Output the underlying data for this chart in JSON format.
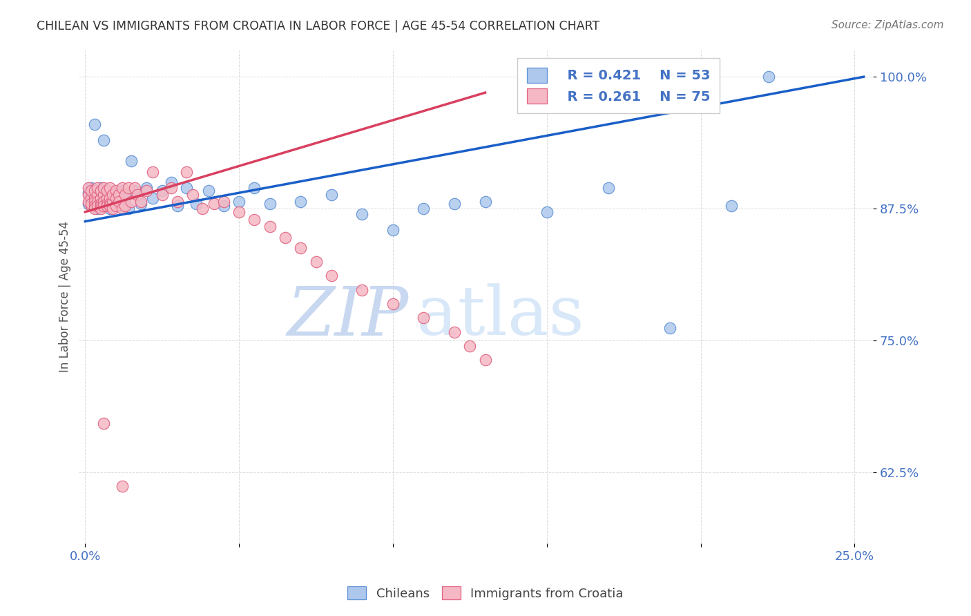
{
  "title": "CHILEAN VS IMMIGRANTS FROM CROATIA IN LABOR FORCE | AGE 45-54 CORRELATION CHART",
  "source_text": "Source: ZipAtlas.com",
  "ylabel": "In Labor Force | Age 45-54",
  "xlim_min": -0.002,
  "xlim_max": 0.256,
  "ylim_min": 0.558,
  "ylim_max": 1.025,
  "x_ticks": [
    0.0,
    0.05,
    0.1,
    0.15,
    0.2,
    0.25
  ],
  "x_tick_labels": [
    "0.0%",
    "",
    "",
    "",
    "",
    "25.0%"
  ],
  "y_ticks": [
    0.625,
    0.75,
    0.875,
    1.0
  ],
  "y_tick_labels": [
    "62.5%",
    "75.0%",
    "87.5%",
    "100.0%"
  ],
  "legend_blue_r": "R = 0.421",
  "legend_blue_n": "N = 53",
  "legend_pink_r": "R = 0.261",
  "legend_pink_n": "N = 75",
  "blue_fill": "#adc8ec",
  "blue_edge": "#5b8fd4",
  "pink_fill": "#f5b8c4",
  "pink_edge": "#e06080",
  "blue_line": "#1a5fc8",
  "pink_line": "#d94060",
  "title_color": "#333333",
  "axis_label_color": "#4472c4",
  "watermark_zip": "#c8d8f0",
  "watermark_atlas": "#d8e8f8",
  "grid_color": "#d8d8d8",
  "chileans_label": "Chileans",
  "croatia_label": "Immigrants from Croatia",
  "blue_x": [
    0.001,
    0.001,
    0.002,
    0.002,
    0.003,
    0.003,
    0.004,
    0.004,
    0.005,
    0.005,
    0.005,
    0.006,
    0.006,
    0.007,
    0.007,
    0.008,
    0.008,
    0.009,
    0.009,
    0.01,
    0.011,
    0.012,
    0.013,
    0.014,
    0.015,
    0.016,
    0.018,
    0.02,
    0.022,
    0.025,
    0.028,
    0.03,
    0.033,
    0.036,
    0.04,
    0.045,
    0.05,
    0.055,
    0.06,
    0.07,
    0.08,
    0.09,
    0.1,
    0.11,
    0.12,
    0.13,
    0.15,
    0.17,
    0.19,
    0.21,
    0.003,
    0.006,
    0.222
  ],
  "blue_y": [
    0.89,
    0.88,
    0.885,
    0.895,
    0.882,
    0.878,
    0.892,
    0.875,
    0.885,
    0.88,
    0.895,
    0.878,
    0.888,
    0.882,
    0.892,
    0.88,
    0.875,
    0.888,
    0.882,
    0.89,
    0.878,
    0.892,
    0.885,
    0.875,
    0.92,
    0.892,
    0.88,
    0.895,
    0.885,
    0.892,
    0.9,
    0.878,
    0.895,
    0.88,
    0.892,
    0.878,
    0.882,
    0.895,
    0.88,
    0.882,
    0.888,
    0.87,
    0.855,
    0.875,
    0.88,
    0.882,
    0.872,
    0.895,
    0.762,
    0.878,
    0.955,
    0.94,
    1.0
  ],
  "pink_x": [
    0.001,
    0.001,
    0.001,
    0.002,
    0.002,
    0.002,
    0.002,
    0.003,
    0.003,
    0.003,
    0.003,
    0.003,
    0.004,
    0.004,
    0.004,
    0.004,
    0.005,
    0.005,
    0.005,
    0.005,
    0.005,
    0.006,
    0.006,
    0.006,
    0.006,
    0.007,
    0.007,
    0.007,
    0.007,
    0.008,
    0.008,
    0.008,
    0.008,
    0.009,
    0.009,
    0.009,
    0.01,
    0.01,
    0.01,
    0.011,
    0.011,
    0.012,
    0.012,
    0.013,
    0.013,
    0.014,
    0.015,
    0.016,
    0.017,
    0.018,
    0.02,
    0.022,
    0.025,
    0.028,
    0.03,
    0.033,
    0.035,
    0.038,
    0.042,
    0.045,
    0.05,
    0.055,
    0.06,
    0.065,
    0.07,
    0.075,
    0.08,
    0.09,
    0.1,
    0.11,
    0.12,
    0.125,
    0.13,
    0.006,
    0.012
  ],
  "pink_y": [
    0.888,
    0.882,
    0.895,
    0.885,
    0.878,
    0.892,
    0.88,
    0.885,
    0.882,
    0.878,
    0.892,
    0.875,
    0.888,
    0.882,
    0.878,
    0.895,
    0.885,
    0.88,
    0.878,
    0.892,
    0.875,
    0.888,
    0.882,
    0.878,
    0.895,
    0.885,
    0.88,
    0.878,
    0.892,
    0.885,
    0.88,
    0.878,
    0.895,
    0.882,
    0.888,
    0.875,
    0.892,
    0.885,
    0.878,
    0.888,
    0.882,
    0.895,
    0.875,
    0.888,
    0.878,
    0.895,
    0.882,
    0.895,
    0.888,
    0.882,
    0.892,
    0.91,
    0.888,
    0.895,
    0.882,
    0.91,
    0.888,
    0.875,
    0.88,
    0.882,
    0.872,
    0.865,
    0.858,
    0.848,
    0.838,
    0.825,
    0.812,
    0.798,
    0.785,
    0.772,
    0.758,
    0.745,
    0.732,
    0.672,
    0.612
  ],
  "blue_line_x0": 0.0,
  "blue_line_x1": 0.253,
  "blue_line_y0": 0.863,
  "blue_line_y1": 1.0,
  "pink_line_x0": 0.0,
  "pink_line_x1": 0.13,
  "pink_line_y0": 0.872,
  "pink_line_y1": 0.985
}
